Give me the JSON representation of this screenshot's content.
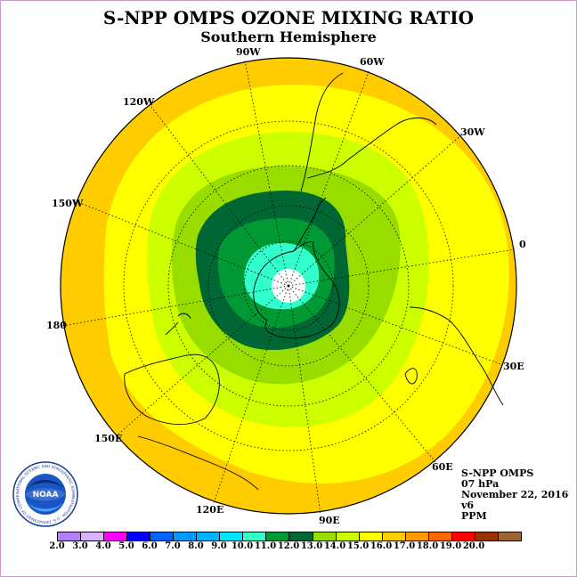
{
  "header": {
    "title": "S-NPP OMPS OZONE MIXING RATIO",
    "subtitle": "Southern Hemisphere"
  },
  "map": {
    "projection": "south-polar-stereographic",
    "longitude_labels": [
      "90W",
      "60W",
      "30W",
      "0",
      "30E",
      "60E",
      "90E",
      "120E",
      "150E",
      "180",
      "150W",
      "120W"
    ],
    "field_description": "Ozone mixing ratio bands ranging from about 11-12 ppm (dark green) near the pole to 16-17 ppm (orange) in the outer ring"
  },
  "info": {
    "instrument": "S-NPP OMPS",
    "level": "07 hPa",
    "date": "November 22, 2016",
    "version": "v6",
    "units": "PPM"
  },
  "colorbar": {
    "ticks": [
      "2.0",
      "3.0",
      "4.0",
      "5.0",
      "6.0",
      "7.0",
      "8.0",
      "9.0",
      "10.0",
      "11.0",
      "12.0",
      "13.0",
      "14.0",
      "15.0",
      "16.0",
      "17.0",
      "18.0",
      "19.0",
      "20.0"
    ],
    "colors": [
      "#b27fff",
      "#d8b2ff",
      "#ff00ff",
      "#0000ff",
      "#0066ff",
      "#0099ff",
      "#00b2ff",
      "#00e5ff",
      "#33ffcc",
      "#009933",
      "#006633",
      "#99dd00",
      "#ccff00",
      "#ffff00",
      "#ffcc00",
      "#ff9900",
      "#ff6600",
      "#ff0000",
      "#993300",
      "#996633"
    ]
  },
  "logo": {
    "text": "NOAA",
    "ring_text": "NATIONAL OCEANIC AND ATMOSPHERIC ADMINISTRATION · U.S. DEPARTMENT OF COMMERCE"
  }
}
